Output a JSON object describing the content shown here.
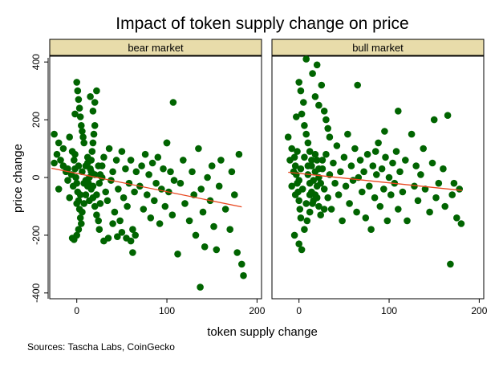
{
  "chart_data": {
    "type": "scatter",
    "title": "Impact of token supply change on price",
    "xlabel": "token supply change",
    "ylabel": "price change",
    "xlim": [
      -30,
      205
    ],
    "ylim": [
      -420,
      420
    ],
    "xticks": [
      0,
      100,
      200
    ],
    "yticks": [
      -400,
      -200,
      0,
      200,
      400
    ],
    "source": "Sources: Tascha Labs, CoinGecko",
    "point_color": "#006400",
    "fit_color": "#e8461e",
    "panels": [
      {
        "label": "bear market",
        "fit": {
          "x": [
            -28,
            183
          ],
          "y": [
            32,
            -102
          ]
        },
        "points": [
          [
            -25,
            150
          ],
          [
            -20,
            120
          ],
          [
            -22,
            80
          ],
          [
            -18,
            60
          ],
          [
            -15,
            40
          ],
          [
            -12,
            20
          ],
          [
            -10,
            -10
          ],
          [
            -20,
            -40
          ],
          [
            -25,
            50
          ],
          [
            -15,
            100
          ],
          [
            -8,
            140
          ],
          [
            -5,
            90
          ],
          [
            -3,
            60
          ],
          [
            -2,
            30
          ],
          [
            -1,
            0
          ],
          [
            0,
            -20
          ],
          [
            1,
            -50
          ],
          [
            2,
            -80
          ],
          [
            3,
            -110
          ],
          [
            4,
            -140
          ],
          [
            0,
            330
          ],
          [
            1,
            300
          ],
          [
            2,
            270
          ],
          [
            3,
            240
          ],
          [
            -2,
            220
          ],
          [
            4,
            210
          ],
          [
            5,
            180
          ],
          [
            6,
            160
          ],
          [
            7,
            140
          ],
          [
            8,
            120
          ],
          [
            -5,
            -210
          ],
          [
            -3,
            -215
          ],
          [
            0,
            -200
          ],
          [
            2,
            -180
          ],
          [
            5,
            -160
          ],
          [
            6,
            -120
          ],
          [
            8,
            -90
          ],
          [
            10,
            -60
          ],
          [
            12,
            -30
          ],
          [
            14,
            0
          ],
          [
            15,
            30
          ],
          [
            16,
            60
          ],
          [
            17,
            90
          ],
          [
            18,
            120
          ],
          [
            19,
            150
          ],
          [
            20,
            180
          ],
          [
            18,
            230
          ],
          [
            20,
            260
          ],
          [
            22,
            300
          ],
          [
            15,
            280
          ],
          [
            10,
            40
          ],
          [
            12,
            70
          ],
          [
            13,
            -20
          ],
          [
            16,
            -40
          ],
          [
            18,
            -70
          ],
          [
            20,
            -100
          ],
          [
            22,
            -130
          ],
          [
            24,
            -150
          ],
          [
            25,
            -20
          ],
          [
            26,
            10
          ],
          [
            28,
            40
          ],
          [
            30,
            70
          ],
          [
            32,
            -50
          ],
          [
            34,
            -80
          ],
          [
            36,
            100
          ],
          [
            38,
            -10
          ],
          [
            40,
            20
          ],
          [
            42,
            -120
          ],
          [
            44,
            60
          ],
          [
            46,
            -40
          ],
          [
            48,
            -150
          ],
          [
            50,
            90
          ],
          [
            52,
            -70
          ],
          [
            54,
            30
          ],
          [
            56,
            -100
          ],
          [
            58,
            -20
          ],
          [
            60,
            60
          ],
          [
            62,
            -180
          ],
          [
            64,
            -50
          ],
          [
            66,
            20
          ],
          [
            55,
            -210
          ],
          [
            60,
            -220
          ],
          [
            65,
            -200
          ],
          [
            30,
            -220
          ],
          [
            35,
            -210
          ],
          [
            45,
            -205
          ],
          [
            50,
            -190
          ],
          [
            25,
            -180
          ],
          [
            40,
            -160
          ],
          [
            62,
            -260
          ],
          [
            70,
            -30
          ],
          [
            72,
            40
          ],
          [
            74,
            -110
          ],
          [
            76,
            80
          ],
          [
            78,
            -60
          ],
          [
            80,
            10
          ],
          [
            82,
            -140
          ],
          [
            84,
            50
          ],
          [
            86,
            -80
          ],
          [
            88,
            -20
          ],
          [
            90,
            70
          ],
          [
            92,
            -160
          ],
          [
            94,
            -40
          ],
          [
            96,
            30
          ],
          [
            98,
            -100
          ],
          [
            100,
            120
          ],
          [
            102,
            -50
          ],
          [
            104,
            20
          ],
          [
            106,
            -130
          ],
          [
            108,
            -10
          ],
          [
            107,
            260
          ],
          [
            100,
            120
          ],
          [
            115,
            -20
          ],
          [
            118,
            60
          ],
          [
            120,
            -90
          ],
          [
            125,
            -150
          ],
          [
            128,
            20
          ],
          [
            130,
            -60
          ],
          [
            132,
            -200
          ],
          [
            135,
            100
          ],
          [
            138,
            -40
          ],
          [
            140,
            -120
          ],
          [
            142,
            -240
          ],
          [
            145,
            0
          ],
          [
            148,
            -80
          ],
          [
            150,
            40
          ],
          [
            152,
            -170
          ],
          [
            155,
            -250
          ],
          [
            158,
            -30
          ],
          [
            160,
            60
          ],
          [
            137,
            -380
          ],
          [
            112,
            -265
          ],
          [
            165,
            -110
          ],
          [
            170,
            -180
          ],
          [
            172,
            20
          ],
          [
            175,
            -60
          ],
          [
            178,
            -260
          ],
          [
            183,
            -300
          ],
          [
            185,
            -340
          ],
          [
            180,
            80
          ],
          [
            -10,
            30
          ],
          [
            -8,
            -70
          ],
          [
            -6,
            10
          ],
          [
            -4,
            -30
          ],
          [
            -2,
            80
          ],
          [
            0,
            -90
          ],
          [
            2,
            40
          ],
          [
            4,
            -60
          ],
          [
            6,
            20
          ],
          [
            8,
            -20
          ],
          [
            10,
            -10
          ],
          [
            12,
            50
          ],
          [
            14,
            -80
          ],
          [
            16,
            20
          ],
          [
            18,
            -30
          ],
          [
            20,
            10
          ],
          [
            22,
            -60
          ],
          [
            24,
            40
          ],
          [
            26,
            -90
          ],
          [
            28,
            0
          ]
        ]
      },
      {
        "label": "bull market",
        "fit": {
          "x": [
            -12,
            181
          ],
          "y": [
            18,
            -45
          ]
        },
        "points": [
          [
            -12,
            140
          ],
          [
            -8,
            100
          ],
          [
            -5,
            70
          ],
          [
            -4,
            40
          ],
          [
            -3,
            10
          ],
          [
            -2,
            -20
          ],
          [
            -1,
            -50
          ],
          [
            0,
            -80
          ],
          [
            1,
            -110
          ],
          [
            2,
            -140
          ],
          [
            0,
            330
          ],
          [
            2,
            300
          ],
          [
            5,
            260
          ],
          [
            -3,
            210
          ],
          [
            3,
            220
          ],
          [
            6,
            180
          ],
          [
            8,
            150
          ],
          [
            10,
            120
          ],
          [
            12,
            90
          ],
          [
            14,
            60
          ],
          [
            8,
            410
          ],
          [
            20,
            390
          ],
          [
            15,
            360
          ],
          [
            25,
            320
          ],
          [
            18,
            280
          ],
          [
            22,
            250
          ],
          [
            28,
            230
          ],
          [
            30,
            200
          ],
          [
            32,
            170
          ],
          [
            34,
            140
          ],
          [
            -5,
            -200
          ],
          [
            0,
            -230
          ],
          [
            3,
            -250
          ],
          [
            6,
            -180
          ],
          [
            9,
            -150
          ],
          [
            12,
            -120
          ],
          [
            15,
            -90
          ],
          [
            18,
            -60
          ],
          [
            20,
            -30
          ],
          [
            22,
            0
          ],
          [
            10,
            40
          ],
          [
            12,
            -20
          ],
          [
            14,
            -50
          ],
          [
            16,
            -80
          ],
          [
            18,
            20
          ],
          [
            20,
            60
          ],
          [
            22,
            -100
          ],
          [
            24,
            -130
          ],
          [
            26,
            30
          ],
          [
            28,
            -40
          ],
          [
            30,
            80
          ],
          [
            32,
            -70
          ],
          [
            34,
            10
          ],
          [
            36,
            -110
          ],
          [
            38,
            50
          ],
          [
            40,
            -20
          ],
          [
            42,
            110
          ],
          [
            44,
            -60
          ],
          [
            46,
            20
          ],
          [
            48,
            -150
          ],
          [
            50,
            70
          ],
          [
            52,
            -30
          ],
          [
            54,
            150
          ],
          [
            56,
            -90
          ],
          [
            58,
            40
          ],
          [
            60,
            -10
          ],
          [
            62,
            100
          ],
          [
            64,
            -120
          ],
          [
            66,
            0
          ],
          [
            68,
            60
          ],
          [
            70,
            -50
          ],
          [
            72,
            20
          ],
          [
            74,
            -140
          ],
          [
            76,
            80
          ],
          [
            78,
            -30
          ],
          [
            80,
            -180
          ],
          [
            82,
            40
          ],
          [
            84,
            -70
          ],
          [
            86,
            10
          ],
          [
            88,
            120
          ],
          [
            90,
            -100
          ],
          [
            92,
            30
          ],
          [
            94,
            -40
          ],
          [
            96,
            70
          ],
          [
            98,
            -150
          ],
          [
            100,
            0
          ],
          [
            102,
            -60
          ],
          [
            104,
            50
          ],
          [
            106,
            -20
          ],
          [
            108,
            90
          ],
          [
            110,
            -110
          ],
          [
            112,
            20
          ],
          [
            115,
            -50
          ],
          [
            118,
            60
          ],
          [
            120,
            -150
          ],
          [
            125,
            150
          ],
          [
            128,
            -30
          ],
          [
            130,
            40
          ],
          [
            132,
            -80
          ],
          [
            135,
            10
          ],
          [
            138,
            100
          ],
          [
            140,
            -40
          ],
          [
            145,
            -120
          ],
          [
            148,
            50
          ],
          [
            150,
            200
          ],
          [
            152,
            -70
          ],
          [
            155,
            -20
          ],
          [
            160,
            30
          ],
          [
            162,
            -100
          ],
          [
            165,
            215
          ],
          [
            168,
            -300
          ],
          [
            170,
            -60
          ],
          [
            172,
            -20
          ],
          [
            175,
            -140
          ],
          [
            178,
            -40
          ],
          [
            180,
            -160
          ],
          [
            65,
            320
          ],
          [
            85,
            90
          ],
          [
            95,
            160
          ],
          [
            110,
            230
          ],
          [
            -10,
            60
          ],
          [
            -8,
            -30
          ],
          [
            -6,
            20
          ],
          [
            -4,
            -60
          ],
          [
            -2,
            90
          ],
          [
            0,
            -10
          ],
          [
            2,
            30
          ],
          [
            4,
            -40
          ],
          [
            6,
            70
          ],
          [
            8,
            -90
          ],
          [
            10,
            10
          ],
          [
            12,
            -60
          ],
          [
            14,
            40
          ],
          [
            16,
            -10
          ],
          [
            18,
            80
          ],
          [
            20,
            -70
          ],
          [
            22,
            30
          ],
          [
            24,
            -20
          ],
          [
            26,
            60
          ],
          [
            28,
            -110
          ]
        ]
      }
    ]
  }
}
